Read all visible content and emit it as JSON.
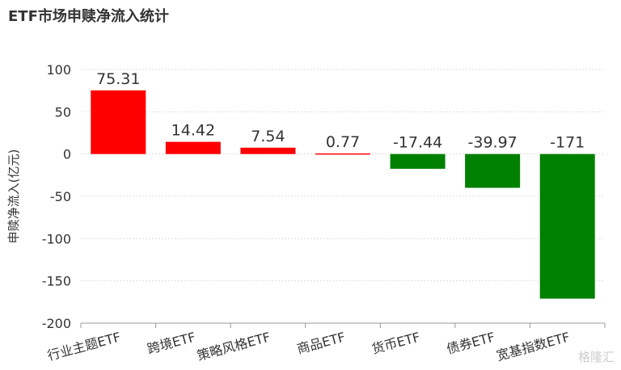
{
  "chart_data": {
    "type": "bar",
    "title": "ETF市场申赎净流入统计",
    "ylabel": "申赎净流入(亿元)",
    "xlabel": "",
    "categories": [
      "行业主题ETF",
      "跨境ETF",
      "策略风格ETF",
      "商品ETF",
      "货币ETF",
      "债券ETF",
      "宽基指数ETF"
    ],
    "values": [
      75.31,
      14.42,
      7.54,
      0.77,
      -17.44,
      -39.97,
      -171
    ],
    "data_labels": [
      "75.31",
      "14.42",
      "7.54",
      "0.77",
      "-17.44",
      "-39.97",
      "-171"
    ],
    "ylim": [
      -200,
      100
    ],
    "yticks": [
      "100",
      "50",
      "0",
      "-50",
      "-100",
      "-150",
      "-200"
    ],
    "grid": true,
    "colors": {
      "positive": "#ff0000",
      "negative": "#008000"
    }
  },
  "watermark": "格隆汇"
}
